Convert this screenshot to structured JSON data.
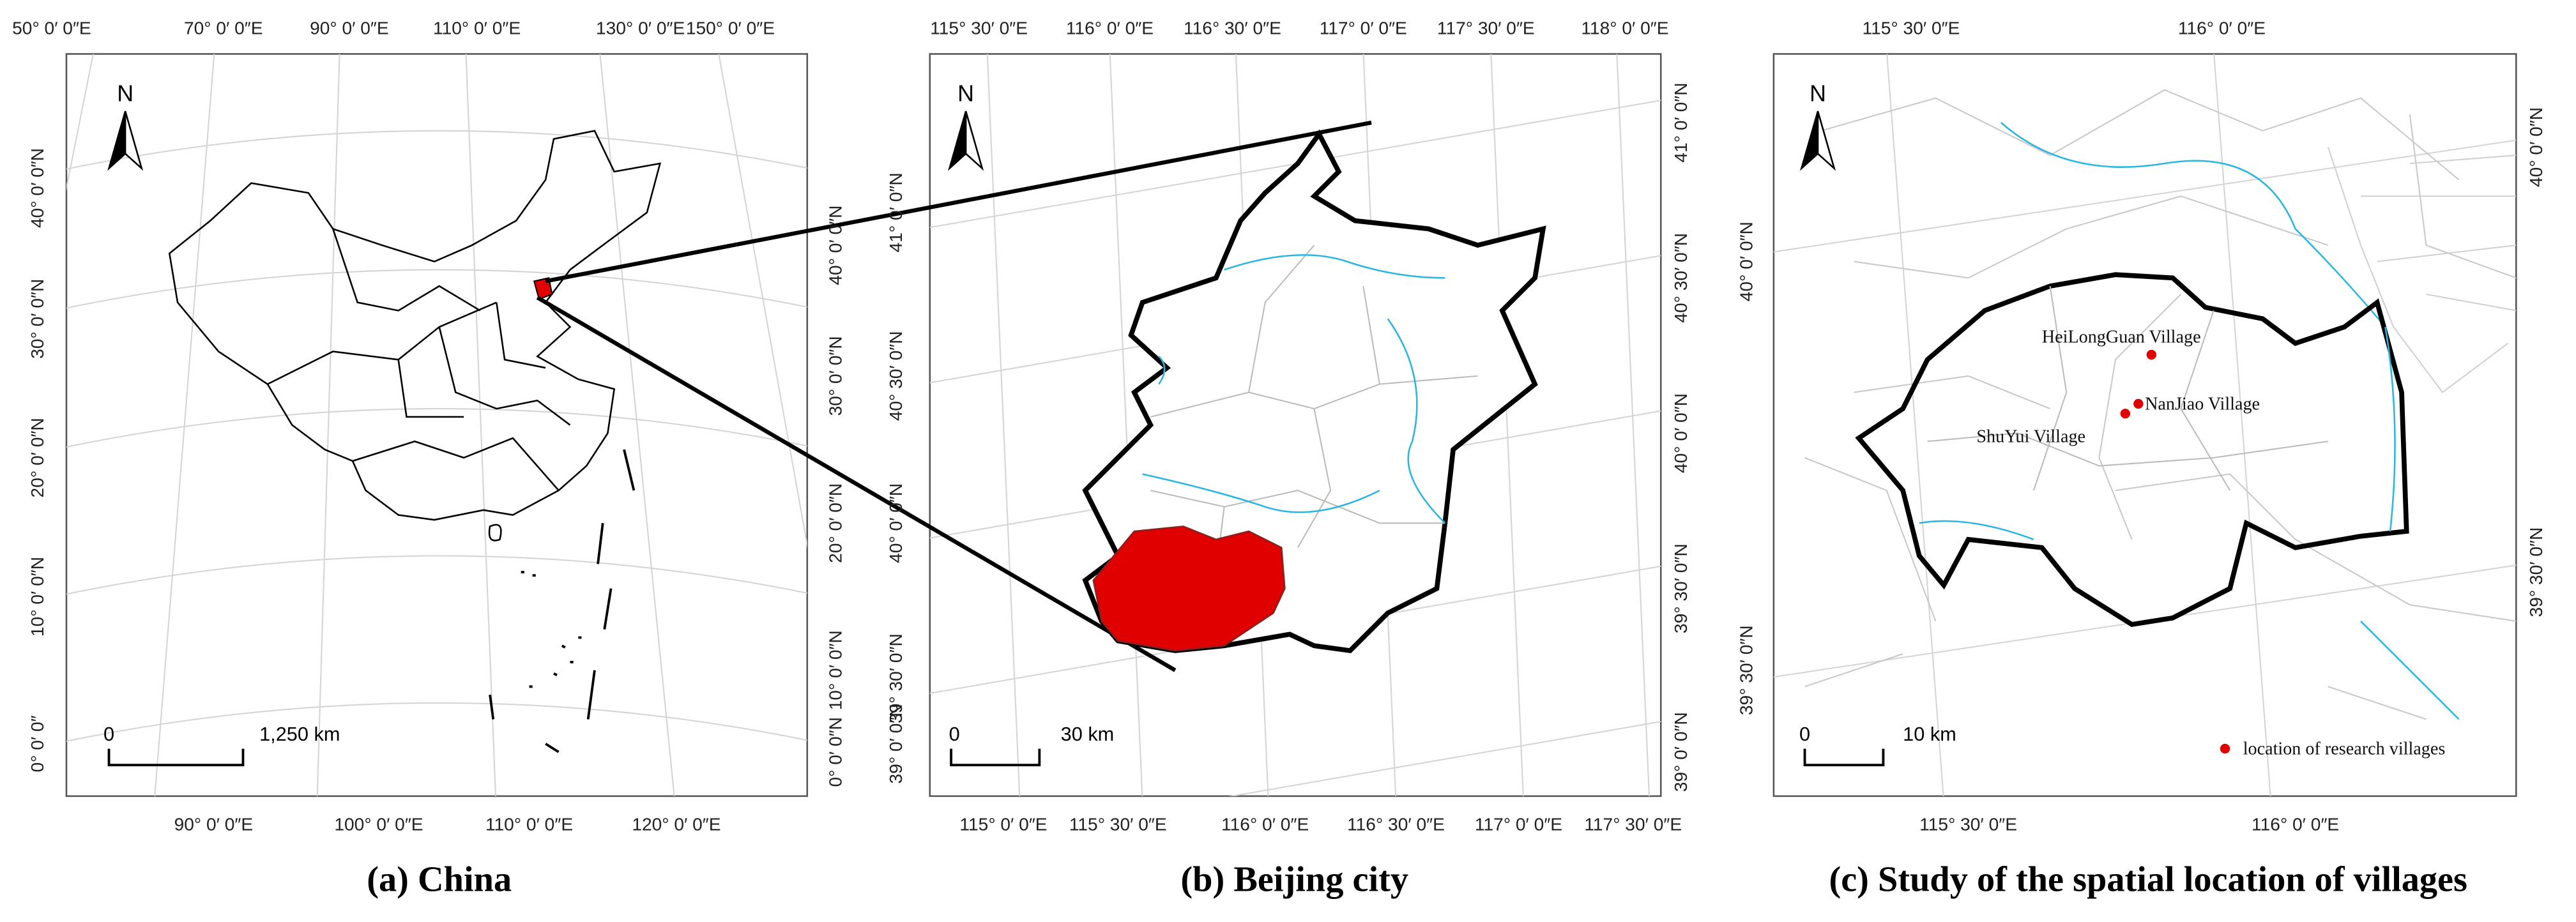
{
  "panels": [
    {
      "caption": "(a) China",
      "north": "N",
      "scale": [
        "0",
        "1,250 km"
      ],
      "top_labels": [
        "50° 0′ 0″E",
        "70° 0′ 0″E",
        "90° 0′ 0″E",
        "110° 0′ 0″E",
        "130° 0′ 0″E",
        "150° 0′ 0″E"
      ],
      "bottom_labels": [
        "90° 0′ 0″E",
        "100° 0′ 0″E",
        "110° 0′ 0″E",
        "120° 0′ 0″E"
      ],
      "left_labels": [
        "40° 0′ 0″N",
        "30° 0′ 0″N",
        "20° 0′ 0″N",
        "10° 0′ 0″N",
        "0° 0′ 0″"
      ],
      "right_labels": [
        "40° 0′ 0″N",
        "30° 0′ 0″N",
        "20° 0′ 0″N",
        "10° 0′ 0″N",
        "0° 0′ 0″N"
      ]
    },
    {
      "caption": "(b) Beijing city",
      "north": "N",
      "scale": [
        "0",
        "30 km"
      ],
      "top_labels": [
        "115° 30′ 0″E",
        "116° 0′ 0″E",
        "116° 30′ 0″E",
        "117° 0′ 0″E",
        "117° 30′ 0″E",
        "118° 0′ 0″E"
      ],
      "bottom_labels": [
        "115° 0′ 0″E",
        "115° 30′ 0″E",
        "116° 0′ 0″E",
        "116° 30′ 0″E",
        "117° 0′ 0″E",
        "117° 30′ 0″E"
      ],
      "left_labels": [
        "41° 0′ 0″N",
        "40° 30′ 0″N",
        "40° 0′ 0″N",
        "39° 30′ 0″N",
        "39° 0′ 0″N"
      ],
      "right_labels": [
        "41° 0′ 0″N",
        "40° 30′ 0″N",
        "40° 0′ 0″N",
        "39° 30′ 0″N",
        "39° 0′ 0″N"
      ]
    },
    {
      "caption": "(c) Study of the spatial location of villages",
      "north": "N",
      "scale": [
        "0",
        "10 km"
      ],
      "top_labels": [
        "115° 30′ 0″E",
        "116° 0′ 0″E"
      ],
      "bottom_labels": [
        "115° 30′ 0″E",
        "116° 0′ 0″E"
      ],
      "left_labels": [
        "40° 0′ 0″N",
        "39° 30′ 0″N"
      ],
      "right_labels": [
        "40° 0′ 0″N",
        "39° 30′ 0″N"
      ]
    }
  ],
  "villages": [
    "HeiLongGuan Village",
    "NanJiao Village",
    "ShuYui Village"
  ],
  "legend": "location of research villages"
}
